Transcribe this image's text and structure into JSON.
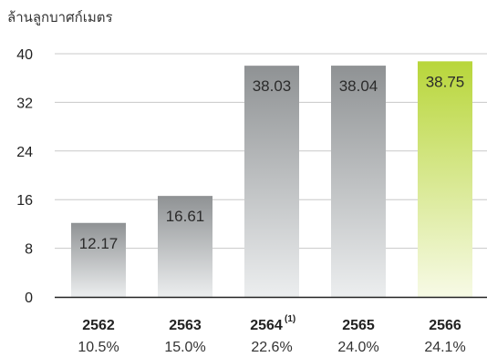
{
  "chart_data": {
    "type": "bar",
    "unit_label": "ล้านลูกบาศก์เมตร",
    "categories": [
      "2562",
      "2563",
      "2564",
      "2565",
      "2566"
    ],
    "category_notes": [
      "",
      "",
      "(1)",
      "",
      ""
    ],
    "values": [
      12.17,
      16.61,
      38.03,
      38.04,
      38.75
    ],
    "value_labels": [
      "12.17",
      "16.61",
      "38.03",
      "38.04",
      "38.75"
    ],
    "percent_labels": [
      "10.5%",
      "15.0%",
      "22.6%",
      "24.0%",
      "24.1%"
    ],
    "yticks": [
      0,
      8,
      16,
      24,
      32,
      40
    ],
    "ylim": [
      0,
      40
    ],
    "grid": true,
    "highlight_index": 4,
    "colors": {
      "bar_top": "#8f9294",
      "bar_bottom": "#eceeef",
      "highlight_top": "#b8d63a",
      "highlight_bottom": "#f7fae6",
      "grid": "#c8c8c8",
      "axis": "#222222"
    }
  }
}
